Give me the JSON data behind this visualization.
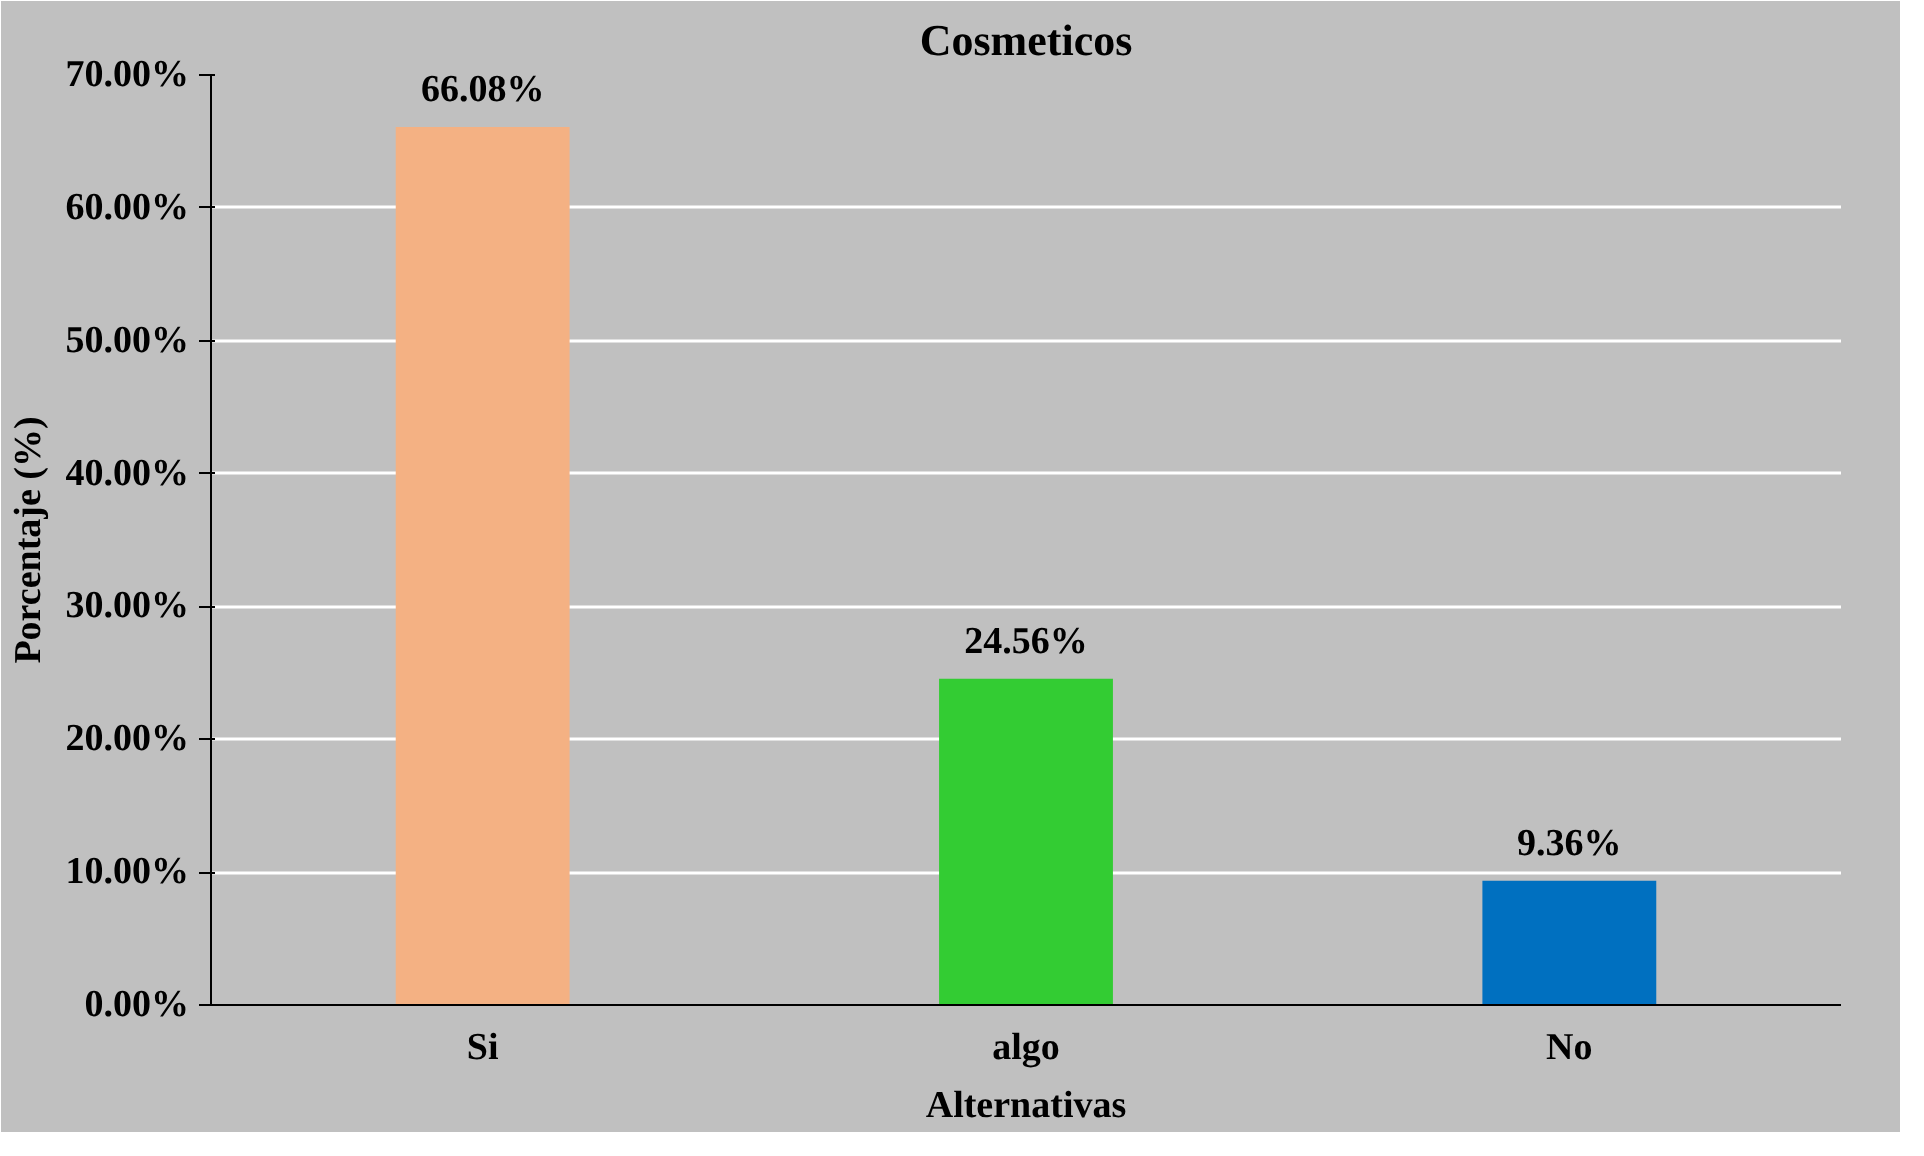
{
  "chart_data": {
    "type": "bar",
    "title": "Cosmeticos",
    "xlabel": "Alternativas",
    "ylabel": "Porcentaje (%)",
    "categories": [
      "Si",
      "algo",
      "No"
    ],
    "values": [
      66.08,
      24.56,
      9.36
    ],
    "colors": [
      "#f4b183",
      "#33cc33",
      "#0070c0"
    ],
    "value_labels": [
      "66.08%",
      "24.56%",
      "9.36%"
    ],
    "ylim": [
      0,
      70
    ],
    "yticks": [
      {
        "value": 0,
        "label": "0.00%"
      },
      {
        "value": 10,
        "label": "10.00%"
      },
      {
        "value": 20,
        "label": "20.00%"
      },
      {
        "value": 30,
        "label": "30.00%"
      },
      {
        "value": 40,
        "label": "40.00%"
      },
      {
        "value": 50,
        "label": "50.00%"
      },
      {
        "value": 60,
        "label": "60.00%"
      },
      {
        "value": 70,
        "label": "70.00%"
      }
    ],
    "grid": "y"
  }
}
